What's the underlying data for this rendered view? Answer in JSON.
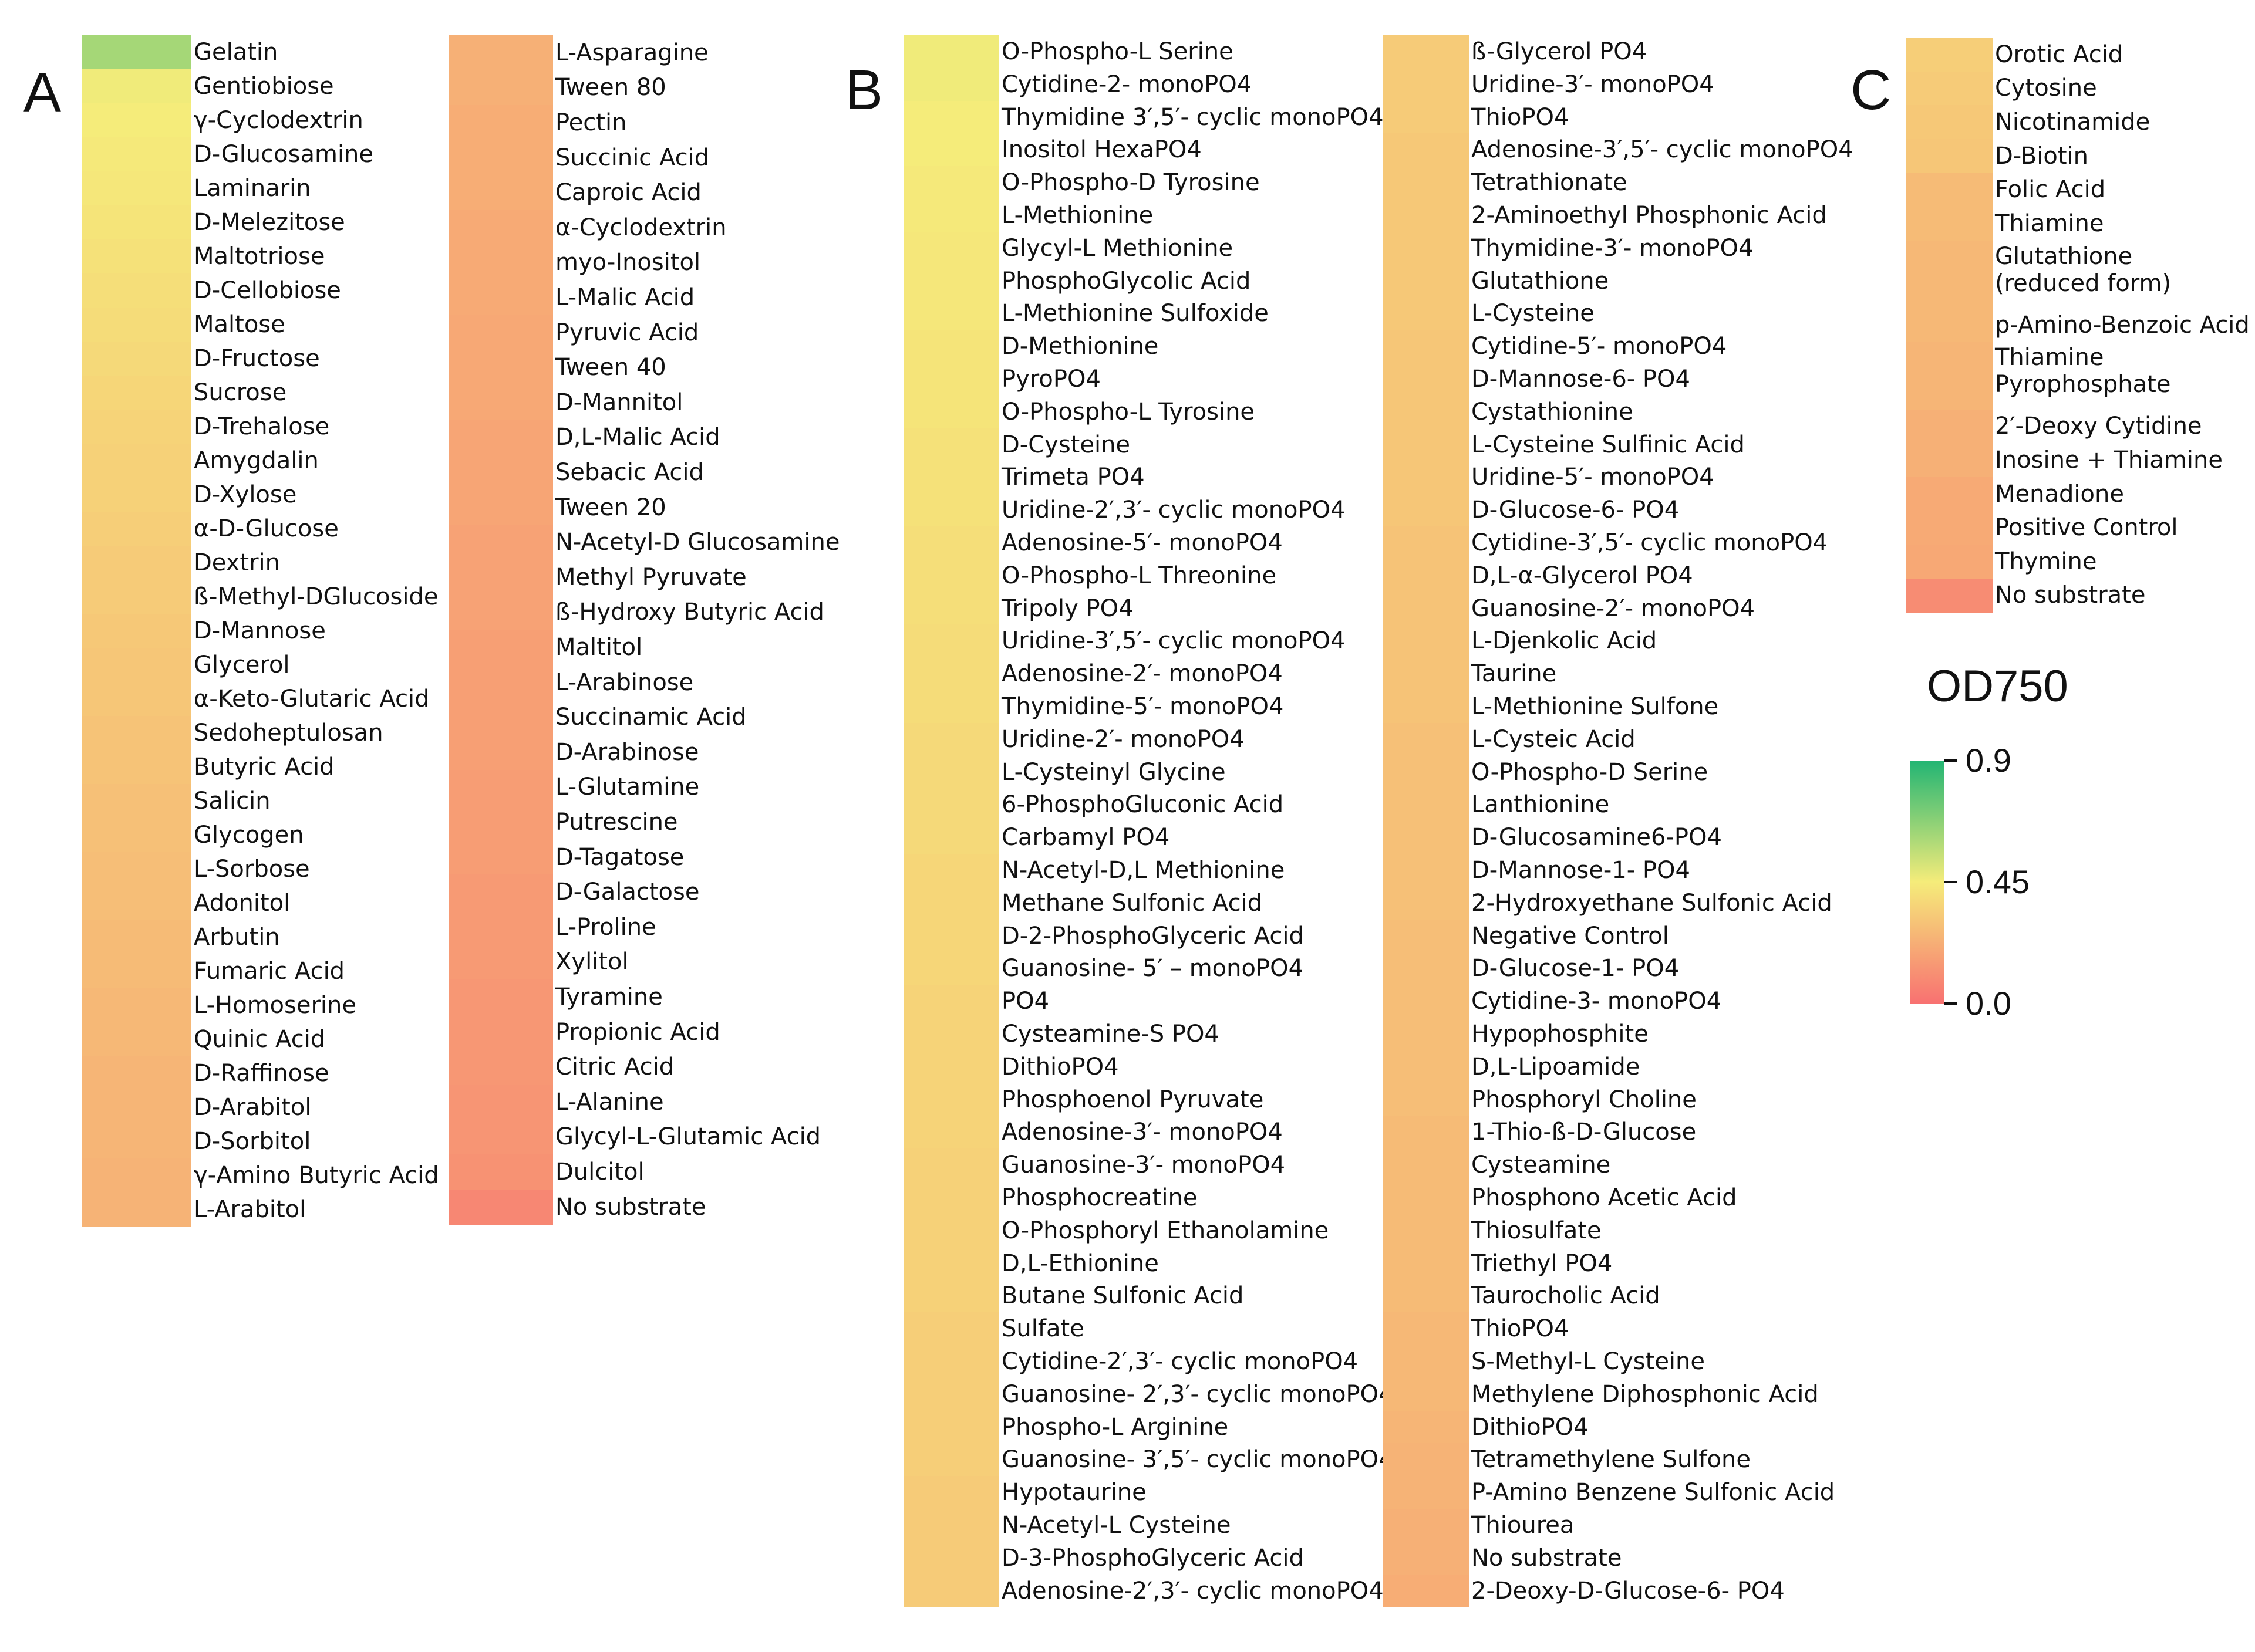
{
  "chart_data": [
    {
      "type": "heatmap",
      "panel": "A",
      "columns": [
        {
          "labels": [
            "Gelatin",
            "Gentiobiose",
            "γ-Cyclodextrin",
            "D-Glucosamine",
            "Laminarin",
            "D-Melezitose",
            "Maltotriose",
            "D-Cellobiose",
            "Maltose",
            "D-Fructose",
            "Sucrose",
            "D-Trehalose",
            "Amygdalin",
            "D-Xylose",
            "α-D-Glucose",
            "Dextrin",
            "ß-Methyl-DGlucoside",
            "D-Mannose",
            "Glycerol",
            "α-Keto-Glutaric Acid",
            "Sedoheptulosan",
            "Butyric Acid",
            "Salicin",
            "Glycogen",
            "L-Sorbose",
            "Adonitol",
            "Arbutin",
            "Fumaric Acid",
            "L-Homoserine",
            "Quinic Acid",
            "D-Raffinose",
            "D-Arabitol",
            "D-Sorbitol",
            "γ-Amino Butyric Acid",
            "L-Arabitol"
          ],
          "values": [
            0.62,
            0.46,
            0.45,
            0.44,
            0.43,
            0.42,
            0.41,
            0.4,
            0.39,
            0.38,
            0.37,
            0.36,
            0.35,
            0.35,
            0.34,
            0.33,
            0.33,
            0.32,
            0.31,
            0.31,
            0.3,
            0.3,
            0.29,
            0.29,
            0.28,
            0.28,
            0.27,
            0.27,
            0.26,
            0.26,
            0.25,
            0.25,
            0.25,
            0.24,
            0.24
          ]
        },
        {
          "labels": [
            "L-Asparagine",
            "Tween 80",
            "Pectin",
            "Succinic Acid",
            "Caproic Acid",
            "α-Cyclodextrin",
            "myo-Inositol",
            "L-Malic Acid",
            "Pyruvic Acid",
            "Tween 40",
            "D-Mannitol",
            "D,L-Malic Acid",
            "Sebacic Acid",
            "Tween 20",
            "N-Acetyl-D Glucosamine",
            "Methyl Pyruvate",
            "ß-Hydroxy Butyric Acid",
            "Maltitol",
            "L-Arabinose",
            "Succinamic Acid",
            "D-Arabinose",
            "L-Glutamine",
            "Putrescine",
            "D-Tagatose",
            "D-Galactose",
            "L-Proline",
            "Xylitol",
            "Tyramine",
            "Propionic Acid",
            "Citric Acid",
            "L-Alanine",
            "Glycyl-L-Glutamic Acid",
            "Dulcitol",
            "No substrate"
          ],
          "values": [
            0.23,
            0.23,
            0.22,
            0.22,
            0.22,
            0.21,
            0.21,
            0.21,
            0.2,
            0.2,
            0.2,
            0.19,
            0.19,
            0.19,
            0.18,
            0.18,
            0.18,
            0.17,
            0.17,
            0.17,
            0.17,
            0.16,
            0.16,
            0.16,
            0.15,
            0.15,
            0.15,
            0.14,
            0.14,
            0.14,
            0.13,
            0.13,
            0.12,
            0.08
          ]
        }
      ]
    },
    {
      "type": "heatmap",
      "panel": "B",
      "columns": [
        {
          "labels": [
            "O-Phospho-L Serine",
            "Cytidine-2- monoPO4",
            "Thymidine 3′,5′- cyclic monoPO4",
            "Inositol HexaPO4",
            "O-Phospho-D Tyrosine",
            "L-Methionine",
            "Glycyl-L Methionine",
            "PhosphoGlycolic Acid",
            "L-Methionine Sulfoxide",
            "D-Methionine",
            "PyroPO4",
            "O-Phospho-L Tyrosine",
            "D-Cysteine",
            "Trimeta PO4",
            "Uridine-2′,3′- cyclic monoPO4",
            "Adenosine-5′- monoPO4",
            "O-Phospho-L Threonine",
            "Tripoly PO4",
            "Uridine-3′,5′- cyclic monoPO4",
            "Adenosine-2′- monoPO4",
            "Thymidine-5′- monoPO4",
            "Uridine-2′- monoPO4",
            "L-Cysteinyl Glycine",
            "6-PhosphoGluconic Acid",
            "Carbamyl PO4",
            "N-Acetyl-D,L Methionine",
            "Methane Sulfonic Acid",
            "D-2-PhosphoGlyceric Acid",
            "Guanosine- 5′ – monoPO4",
            "PO4",
            "Cysteamine-S PO4",
            "DithioPO4",
            "Phosphoenol Pyruvate",
            "Adenosine-3′- monoPO4",
            "Guanosine-3′- monoPO4",
            "Phosphocreatine",
            "O-Phosphoryl Ethanolamine",
            "D,L-Ethionine",
            "Butane Sulfonic Acid",
            "Sulfate",
            "Cytidine-2′,3′- cyclic monoPO4",
            "Guanosine- 2′,3′- cyclic monoPO4",
            "Phospho-L Arginine",
            "Guanosine- 3′,5′- cyclic monoPO4",
            "Hypotaurine",
            "N-Acetyl-L Cysteine",
            "D-3-PhosphoGlyceric Acid",
            "Adenosine-2′,3′- cyclic monoPO4"
          ],
          "values": [
            0.46,
            0.46,
            0.45,
            0.45,
            0.44,
            0.44,
            0.43,
            0.43,
            0.43,
            0.42,
            0.42,
            0.42,
            0.41,
            0.41,
            0.41,
            0.4,
            0.4,
            0.4,
            0.39,
            0.39,
            0.39,
            0.38,
            0.38,
            0.38,
            0.38,
            0.37,
            0.37,
            0.37,
            0.37,
            0.36,
            0.36,
            0.36,
            0.36,
            0.36,
            0.35,
            0.35,
            0.35,
            0.35,
            0.35,
            0.34,
            0.34,
            0.34,
            0.34,
            0.34,
            0.33,
            0.33,
            0.33,
            0.33
          ]
        },
        {
          "labels": [
            "ß-Glycerol PO4",
            "Uridine-3′- monoPO4",
            "ThioPO4",
            "Adenosine-3′,5′- cyclic monoPO4",
            "Tetrathionate",
            "2-Aminoethyl Phosphonic Acid",
            "Thymidine-3′- monoPO4",
            "Glutathione",
            "L-Cysteine",
            "Cytidine-5′- monoPO4",
            "D-Mannose-6- PO4",
            "Cystathionine",
            "L-Cysteine Sulfinic Acid",
            "Uridine-5′- monoPO4",
            "D-Glucose-6- PO4",
            "Cytidine-3′,5′- cyclic monoPO4",
            "D,L-α-Glycerol PO4",
            "Guanosine-2′- monoPO4",
            "L-Djenkolic Acid",
            "Taurine",
            "L-Methionine Sulfone",
            "L-Cysteic Acid",
            "O-Phospho-D Serine",
            "Lanthionine",
            "D-Glucosamine6-PO4",
            "D-Mannose-1- PO4",
            "2-Hydroxyethane Sulfonic Acid",
            "Negative Control",
            "D-Glucose-1- PO4",
            "Cytidine-3- monoPO4",
            "Hypophosphite",
            "D,L-Lipoamide",
            "Phosphoryl Choline",
            "1-Thio-ß-D-Glucose",
            "Cysteamine",
            "Phosphono Acetic Acid",
            "Thiosulfate",
            "Triethyl PO4",
            "Taurocholic Acid",
            "ThioPO4",
            "S-Methyl-L Cysteine",
            "Methylene Diphosphonic Acid",
            "DithioPO4",
            "Tetramethylene Sulfone",
            "P-Amino Benzene Sulfonic Acid",
            "Thiourea",
            "No substrate",
            "2-Deoxy-D-Glucose-6- PO4"
          ],
          "values": [
            0.33,
            0.33,
            0.33,
            0.32,
            0.32,
            0.32,
            0.32,
            0.32,
            0.32,
            0.31,
            0.31,
            0.31,
            0.31,
            0.31,
            0.31,
            0.3,
            0.3,
            0.3,
            0.3,
            0.3,
            0.3,
            0.29,
            0.29,
            0.29,
            0.29,
            0.29,
            0.29,
            0.28,
            0.28,
            0.28,
            0.28,
            0.28,
            0.28,
            0.27,
            0.27,
            0.27,
            0.27,
            0.27,
            0.27,
            0.26,
            0.26,
            0.26,
            0.25,
            0.24,
            0.24,
            0.23,
            0.23,
            0.22
          ]
        }
      ]
    },
    {
      "type": "heatmap",
      "panel": "C",
      "columns": [
        {
          "labels": [
            "Orotic Acid",
            "Cytosine",
            "Nicotinamide",
            "D-Biotin",
            "Folic Acid",
            "Thiamine",
            "Glutathione (reduced form)",
            "p-Amino-Benzoic Acid",
            "Thiamine Pyrophosphate",
            "2′-Deoxy Cytidine",
            "Inosine + Thiamine",
            "Menadione",
            "Positive Control",
            "Thymine",
            "No substrate"
          ],
          "spans": [
            1,
            1,
            1,
            1,
            1,
            1,
            2,
            1,
            2,
            1,
            1,
            1,
            1,
            1,
            1
          ],
          "values": [
            0.34,
            0.33,
            0.32,
            0.31,
            0.27,
            0.27,
            0.26,
            0.26,
            0.25,
            0.23,
            0.23,
            0.21,
            0.21,
            0.2,
            0.1
          ]
        }
      ]
    }
  ],
  "panel_labels": {
    "a": "A",
    "b": "B",
    "c": "C"
  },
  "legend": {
    "title": "OD750",
    "ticks": [
      {
        "value": 0.9,
        "label": "0.9"
      },
      {
        "value": 0.45,
        "label": "0.45"
      },
      {
        "value": 0.0,
        "label": "0.0"
      }
    ],
    "colors": {
      "low": "#f87171",
      "mid": "#f5ec7a",
      "high": "#22b573"
    }
  }
}
